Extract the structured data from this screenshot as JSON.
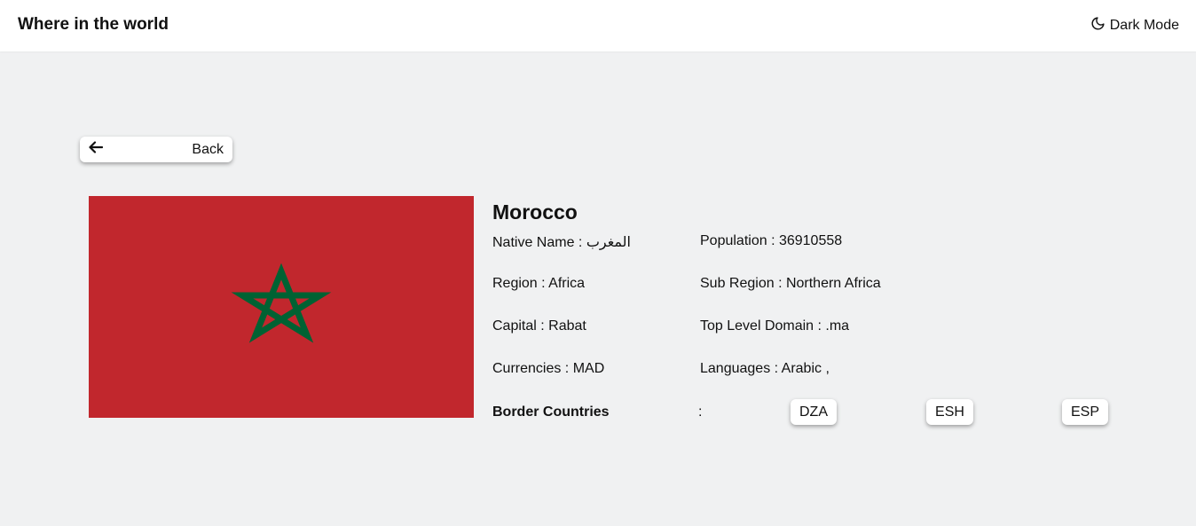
{
  "header": {
    "title": "Where in the world",
    "dark_mode_label": "Dark Mode",
    "dark_mode_icon": "moon-icon"
  },
  "back_button": {
    "label": "Back",
    "icon": "arrow-left-icon"
  },
  "country": {
    "name": "Morocco",
    "flag": {
      "icon": "morocco-flag",
      "background": "#c1272d",
      "star": "#006233"
    },
    "native_name": "Native Name : المغرب",
    "population": "Population : 36910558",
    "region": "Region : Africa",
    "sub_region": "Sub Region : Northern Africa",
    "capital": "Capital : Rabat",
    "top_level_domain": "Top Level Domain : .ma",
    "currencies": "Currencies : MAD",
    "languages": "Languages : Arabic ,",
    "border_label": "Border Countries",
    "border_colon": ":",
    "borders": [
      "DZA",
      "ESH",
      "ESP"
    ]
  },
  "colors": {
    "header_bg": "#ffffff",
    "page_bg": "#f0f1f2",
    "text": "#111111"
  }
}
